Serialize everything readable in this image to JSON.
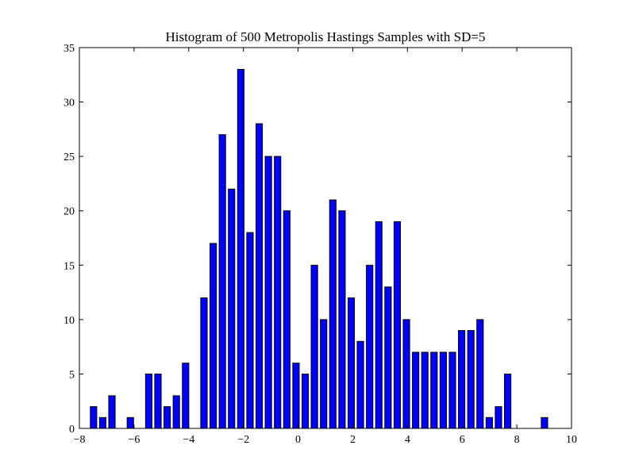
{
  "chart_data": {
    "type": "histogram",
    "title": "Histogram of 500 Metropolis Hastings Samples with SD=5",
    "bins": [
      -7.65,
      -7.313,
      -6.977,
      -6.64,
      -6.304,
      -5.967,
      -5.63,
      -5.294,
      -4.957,
      -4.621,
      -4.284,
      -3.947,
      -3.611,
      -3.274,
      -2.938,
      -2.601,
      -2.264,
      -1.928,
      -1.591,
      -1.255,
      -0.918,
      -0.581,
      -0.245,
      0.092,
      0.428,
      0.765,
      1.102,
      1.438,
      1.775,
      2.111,
      2.448,
      2.785,
      3.121,
      3.458,
      3.794,
      4.131,
      4.468,
      4.804,
      5.141,
      5.477,
      5.814,
      6.151,
      6.487,
      6.824,
      7.16,
      7.497,
      7.834,
      8.17,
      8.507,
      8.843,
      9.18
    ],
    "counts": [
      2,
      1,
      3,
      0,
      1,
      0,
      5,
      5,
      2,
      3,
      6,
      0,
      12,
      17,
      27,
      22,
      33,
      18,
      28,
      25,
      25,
      20,
      6,
      5,
      15,
      10,
      21,
      20,
      12,
      8,
      15,
      19,
      13,
      19,
      10,
      7,
      7,
      7,
      7,
      7,
      9,
      9,
      10,
      1,
      2,
      5,
      0,
      0,
      0,
      1
    ],
    "color": "#0000ff",
    "xlim": [
      -8,
      10
    ],
    "xticks": [
      -8,
      -6,
      -4,
      -2,
      0,
      2,
      4,
      6,
      8,
      10
    ],
    "ylim": [
      0,
      35
    ],
    "yticks": [
      0,
      5,
      10,
      15,
      20,
      25,
      30,
      35
    ],
    "grid": false
  }
}
